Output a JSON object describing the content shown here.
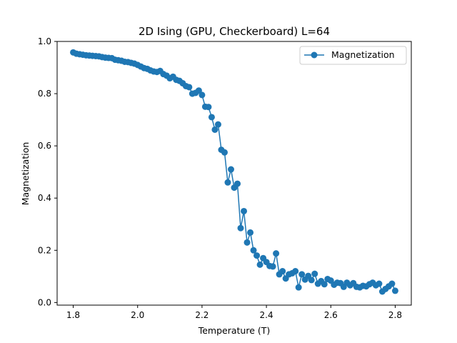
{
  "chart_data": {
    "type": "line",
    "title": "2D Ising (GPU, Checkerboard) L=64",
    "xlabel": "Temperature (T)",
    "ylabel": "Magnetization",
    "xlim": [
      1.75,
      2.85
    ],
    "ylim": [
      -0.01,
      1.0
    ],
    "xticks": [
      "1.8",
      "2.0",
      "2.2",
      "2.4",
      "2.6",
      "2.8"
    ],
    "yticks": [
      "0.0",
      "0.2",
      "0.4",
      "0.6",
      "0.8",
      "1.0"
    ],
    "grid": false,
    "legend_position": "top-right",
    "marker": "circle",
    "series": [
      {
        "name": "Magnetization",
        "color": "#1f77b4",
        "x": [
          1.8,
          1.81,
          1.82,
          1.83,
          1.84,
          1.85,
          1.86,
          1.87,
          1.88,
          1.89,
          1.9,
          1.91,
          1.92,
          1.93,
          1.94,
          1.95,
          1.96,
          1.97,
          1.98,
          1.99,
          2.0,
          2.01,
          2.02,
          2.03,
          2.04,
          2.05,
          2.06,
          2.07,
          2.08,
          2.09,
          2.1,
          2.11,
          2.12,
          2.13,
          2.14,
          2.15,
          2.16,
          2.17,
          2.18,
          2.19,
          2.2,
          2.21,
          2.22,
          2.23,
          2.24,
          2.25,
          2.26,
          2.27,
          2.28,
          2.29,
          2.3,
          2.31,
          2.32,
          2.33,
          2.34,
          2.35,
          2.36,
          2.37,
          2.38,
          2.39,
          2.4,
          2.41,
          2.42,
          2.43,
          2.44,
          2.45,
          2.46,
          2.47,
          2.48,
          2.49,
          2.5,
          2.51,
          2.52,
          2.53,
          2.54,
          2.55,
          2.56,
          2.57,
          2.58,
          2.59,
          2.6,
          2.61,
          2.62,
          2.63,
          2.64,
          2.65,
          2.66,
          2.67,
          2.68,
          2.69,
          2.7,
          2.71,
          2.72,
          2.73,
          2.74,
          2.75,
          2.76,
          2.77,
          2.78,
          2.79,
          2.8
        ],
        "y": [
          0.958,
          0.953,
          0.951,
          0.949,
          0.947,
          0.946,
          0.945,
          0.944,
          0.943,
          0.94,
          0.938,
          0.937,
          0.936,
          0.93,
          0.928,
          0.926,
          0.922,
          0.921,
          0.918,
          0.915,
          0.91,
          0.904,
          0.898,
          0.895,
          0.889,
          0.885,
          0.883,
          0.887,
          0.875,
          0.869,
          0.859,
          0.865,
          0.853,
          0.849,
          0.84,
          0.829,
          0.825,
          0.8,
          0.803,
          0.812,
          0.795,
          0.75,
          0.749,
          0.71,
          0.662,
          0.682,
          0.585,
          0.575,
          0.46,
          0.51,
          0.44,
          0.455,
          0.285,
          0.35,
          0.23,
          0.268,
          0.2,
          0.18,
          0.145,
          0.17,
          0.155,
          0.14,
          0.138,
          0.188,
          0.108,
          0.12,
          0.092,
          0.108,
          0.112,
          0.12,
          0.058,
          0.108,
          0.088,
          0.102,
          0.086,
          0.11,
          0.072,
          0.082,
          0.07,
          0.09,
          0.084,
          0.068,
          0.076,
          0.074,
          0.06,
          0.076,
          0.066,
          0.074,
          0.06,
          0.058,
          0.064,
          0.062,
          0.07,
          0.076,
          0.066,
          0.072,
          0.042,
          0.052,
          0.062,
          0.072,
          0.045
        ]
      }
    ]
  }
}
